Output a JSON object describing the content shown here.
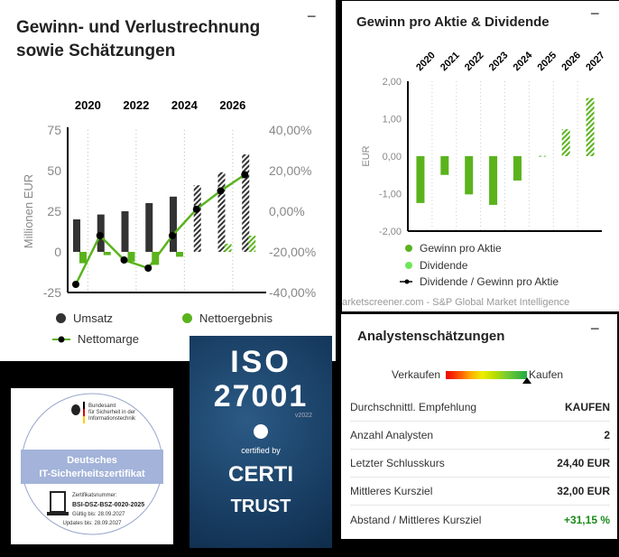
{
  "income": {
    "title_line1": "Gewinn- und Verlustrechnung",
    "title_line2": "sowie Schätzungen",
    "collapse": "−",
    "legend": {
      "revenue": "Umsatz",
      "net_income": "Nettoergebnis",
      "net_margin": "Nettomarge"
    }
  },
  "eps": {
    "title": "Gewinn pro Aktie & Dividende",
    "collapse": "−",
    "legend": {
      "eps": "Gewinn pro Aktie",
      "dividend": "Dividende",
      "payout": "Dividende / Gewinn pro Aktie"
    },
    "source": "arketscreener.com - S&P Global Market Intelligence"
  },
  "analyst": {
    "title": "Analystenschätzungen",
    "collapse": "−",
    "scale_left": "Verkaufen",
    "scale_right": "Kaufen",
    "consensus_position": 1.0,
    "rows": [
      {
        "label": "Durchschnittl. Empfehlung",
        "value": "KAUFEN"
      },
      {
        "label": "Anzahl Analysten",
        "value": "2"
      },
      {
        "label": "Letzter Schlusskurs",
        "value": "24,40 EUR"
      },
      {
        "label": "Mittleres Kursziel",
        "value": "32,00 EUR"
      },
      {
        "label": "Abstand / Mittleres Kursziel",
        "value": "+31,15 %"
      }
    ]
  },
  "bsi": {
    "org1": "Bundesamt",
    "org2": "für Sicherheit in der",
    "org3": "Informationstechnik",
    "title1": "Deutsches",
    "title2": "IT-Sicherheitszertifikat",
    "cert_label": "Zertifikatsnummer:",
    "cert_no": "BSI-DSZ-BSZ-0020-2025",
    "valid": "Gültig bis: 28.09.2027",
    "updates": "Updates bis: 28.09.2027"
  },
  "iso": {
    "line1": "ISO",
    "line2": "27001",
    "version": "v2022",
    "certified": "certified by",
    "brand1": "CERTI",
    "brand2": "TRUST"
  },
  "colors": {
    "bar": "#333333",
    "green": "#5ab31c",
    "light_green": "#6ee65a",
    "positive": "#1a8a1a"
  },
  "chart_data": [
    {
      "type": "bar",
      "title": "Gewinn- und Verlustrechnung sowie Schätzungen",
      "categories": [
        "2020",
        "2021",
        "2022",
        "2023",
        "2024",
        "2025",
        "2026",
        "2027"
      ],
      "tick_labels": [
        "2020",
        "2022",
        "2024",
        "2026"
      ],
      "ylabel": "Millionen EUR",
      "ylim": [
        -25,
        75
      ],
      "yticks": [
        "75",
        "50",
        "25",
        "0",
        "-25"
      ],
      "y2lim": [
        -40,
        40
      ],
      "y2ticks": [
        "40,00%",
        "20,00%",
        "0,00%",
        "-20,00%",
        "-40,00%"
      ],
      "estimate_from": "2025",
      "series": [
        {
          "name": "Umsatz",
          "values": [
            20,
            23,
            25,
            30,
            34,
            41,
            49,
            60
          ]
        },
        {
          "name": "Nettoergebnis",
          "values": [
            -7,
            -2,
            -6,
            -8,
            -3,
            0,
            5,
            10
          ]
        },
        {
          "name": "Nettomarge",
          "axis": "right",
          "values": [
            -36,
            -12,
            -24,
            -28,
            -12,
            1,
            10,
            18
          ]
        }
      ]
    },
    {
      "type": "bar",
      "title": "Gewinn pro Aktie & Dividende",
      "categories": [
        "2020",
        "2021",
        "2022",
        "2023",
        "2024",
        "2025",
        "2026",
        "2027"
      ],
      "ylabel": "EUR",
      "ylim": [
        -2,
        2
      ],
      "yticks": [
        "2,00",
        "1,00",
        "0,00",
        "-1,00",
        "-2,00"
      ],
      "estimate_from": "2025",
      "series": [
        {
          "name": "Gewinn pro Aktie",
          "values": [
            -1.25,
            -0.5,
            -1.02,
            -1.3,
            -0.65,
            0.01,
            0.72,
            1.55
          ]
        }
      ]
    }
  ]
}
